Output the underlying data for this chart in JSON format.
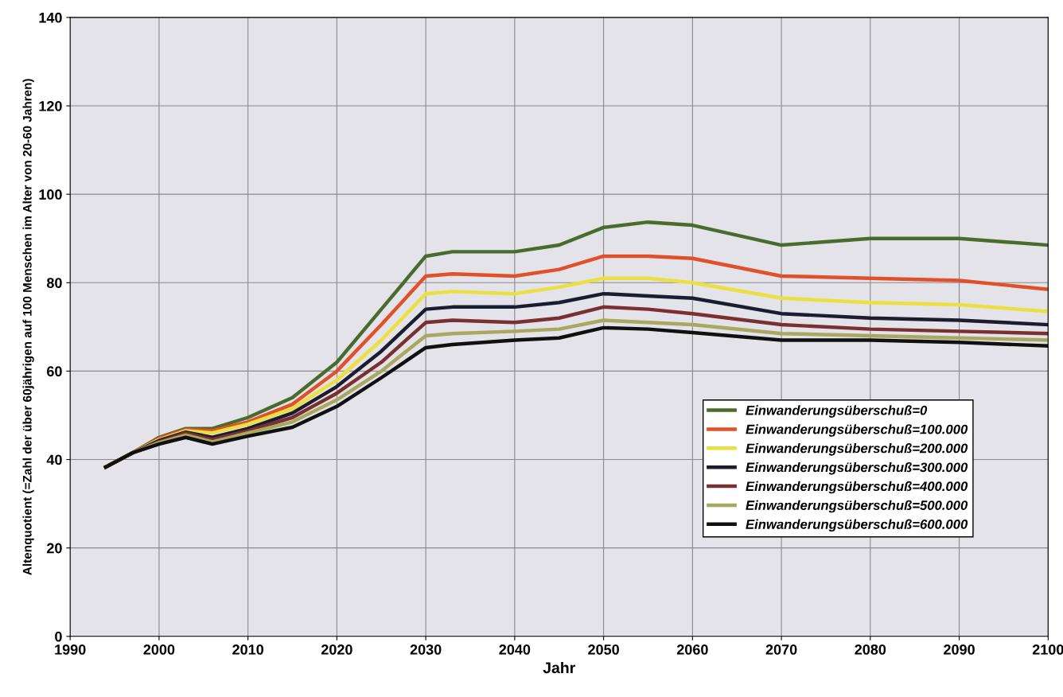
{
  "chart_data": {
    "type": "line",
    "xlabel": "Jahr",
    "ylabel": "Altenquotient (=Zahl der über 60jährigen auf 100 Menschen im Alter von 20-60 Jahren)",
    "x": [
      1994,
      1997,
      2000,
      2003,
      2006,
      2010,
      2015,
      2020,
      2025,
      2030,
      2033,
      2040,
      2045,
      2050,
      2055,
      2060,
      2070,
      2080,
      2090,
      2100
    ],
    "series": [
      {
        "name": "Einwanderungsüberschuß=0",
        "color": "#4a6b2e",
        "values": [
          38.3,
          41.5,
          45,
          47,
          47,
          49.5,
          54,
          62,
          74,
          86,
          87,
          87,
          88.5,
          92.5,
          93.7,
          93,
          88.5,
          90,
          90,
          88.5
        ]
      },
      {
        "name": "Einwanderungsüberschuß=100.000",
        "color": "#e0502a",
        "values": [
          38.3,
          41.5,
          44.8,
          46.8,
          46.5,
          48.5,
          52.5,
          60,
          70.5,
          81.5,
          82,
          81.5,
          83,
          86,
          86,
          85.5,
          81.5,
          81,
          80.5,
          78.5
        ]
      },
      {
        "name": "Einwanderungsüberschuß=200.000",
        "color": "#ece040",
        "values": [
          38.3,
          41.5,
          44.5,
          46.5,
          46,
          48,
          51.5,
          58,
          67,
          77.5,
          78,
          77.5,
          79,
          81,
          81,
          80,
          76.5,
          75.5,
          75,
          73.5
        ]
      },
      {
        "name": "Einwanderungsüberschuß=300.000",
        "color": "#1c1c30",
        "values": [
          38.3,
          41.5,
          44.3,
          46.2,
          45,
          47,
          50.5,
          56.5,
          64.5,
          74,
          74.5,
          74.5,
          75.5,
          77.5,
          77,
          76.5,
          73,
          72,
          71.5,
          70.5
        ]
      },
      {
        "name": "Einwanderungsüberschuß=400.000",
        "color": "#7a3030",
        "values": [
          38.3,
          41.5,
          44,
          46,
          44.5,
          46.5,
          49.5,
          55,
          62,
          71,
          71.5,
          71,
          72,
          74.5,
          74,
          73,
          70.5,
          69.5,
          69,
          68.5
        ]
      },
      {
        "name": "Einwanderungsüberschuß=500.000",
        "color": "#a8a860",
        "values": [
          38.3,
          41.5,
          43.8,
          45.5,
          44,
          46,
          48.5,
          53.5,
          60,
          68,
          68.5,
          69,
          69.5,
          71.5,
          71,
          70.5,
          68.5,
          68,
          67.5,
          67
        ]
      },
      {
        "name": "Einwanderungsüberschuß=600.000",
        "color": "#101010",
        "values": [
          38.3,
          41.5,
          43.5,
          45,
          43.5,
          45.3,
          47.3,
          52,
          58.5,
          65.3,
          66,
          67,
          67.5,
          69.8,
          69.5,
          68.7,
          67,
          67,
          66.5,
          65.7
        ]
      }
    ],
    "xlim": [
      1990,
      2100
    ],
    "ylim": [
      0,
      140
    ],
    "xticks": [
      1990,
      2000,
      2010,
      2020,
      2030,
      2040,
      2050,
      2060,
      2070,
      2080,
      2090,
      2100
    ],
    "yticks": [
      0,
      20,
      40,
      60,
      80,
      100,
      120,
      140
    ],
    "grid": true,
    "legend": "lower right",
    "marker": "none",
    "line_style": "solid"
  }
}
